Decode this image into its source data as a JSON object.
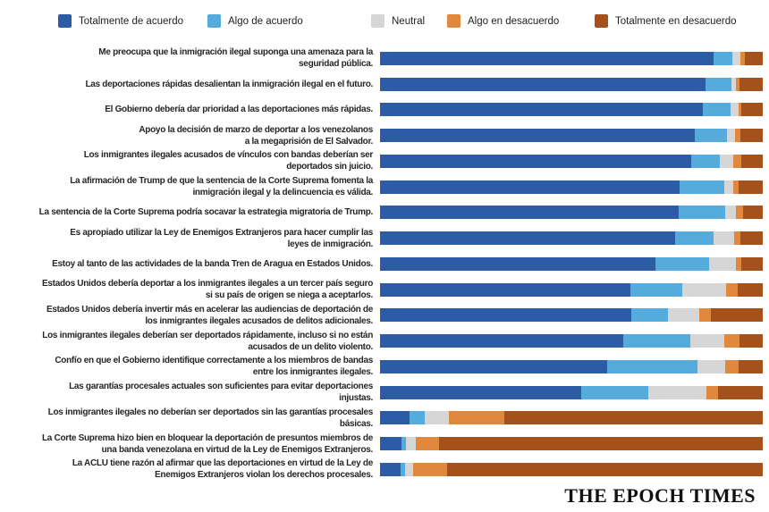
{
  "legend": {
    "items": [
      {
        "label": "Totalmente de acuerdo",
        "color": "#2d5ca6"
      },
      {
        "label": "Algo de acuerdo",
        "color": "#54abdc"
      },
      {
        "label": "Neutral",
        "color": "#d6d6d6"
      },
      {
        "label": "Algo en desacuerdo",
        "color": "#e0883d"
      },
      {
        "label": "Totalmente en desacuerdo",
        "color": "#a4511c"
      }
    ]
  },
  "chart_data": {
    "type": "bar",
    "orientation": "horizontal",
    "stacked": true,
    "unit": "percent",
    "xlim": [
      0,
      100
    ],
    "grid": false,
    "legend_position": "top",
    "categories": [
      "Me preocupa que la inmigración ilegal suponga una amenaza para la\nseguridad pública.",
      "Las deportaciones rápidas desalientan la inmigración ilegal en el futuro.",
      "El Gobierno debería dar prioridad a las deportaciones más rápidas.",
      "Apoyo la decisión de marzo de deportar a los venezolanos\na la megaprisión de El Salvador.",
      "Los inmigrantes ilegales acusados de vínculos con bandas deberían ser\ndeportados sin juicio.",
      "La afirmación de Trump de que la sentencia de la Corte Suprema fomenta la\ninmigración ilegal y la delincuencia es válida.",
      "La sentencia de la Corte Suprema podría socavar la estrategia migratoria de Trump.",
      "Es apropiado utilizar la Ley de Enemigos Extranjeros para hacer cumplir las\nleyes de inmigración.",
      "Estoy al tanto de las actividades de la banda Tren de Aragua en Estados Unidos.",
      "Estados Unidos debería deportar a los inmigrantes ilegales a un tercer país seguro\nsi su país de origen se niega a aceptarlos.",
      "Estados Unidos debería invertir más en acelerar las audiencias de deportación de\nlos inmigrantes ilegales acusados de delitos adicionales.",
      "Los inmigrantes ilegales deberían ser deportados rápidamente, incluso si no están\nacusados de un delito violento.",
      "Confío en que el Gobierno identifique correctamente a los miembros de bandas\nentre los inmigrantes ilegales.",
      "Las garantías procesales actuales son suficientes para evitar deportaciones\ninjustas.",
      "Los inmigrantes ilegales no deberían ser deportados sin las garantías procesales\nbásicas.",
      "La Corte Suprema hizo bien en bloquear la deportación de presuntos miembros de\nuna banda venezolana en virtud de la Ley de Enemigos Extranjeros.",
      "La ACLU tiene razón al afirmar que las deportaciones en virtud de la Ley de\nEnemigos Extranjeros violan los derechos procesales."
    ],
    "series": [
      {
        "name": "Totalmente de acuerdo",
        "color": "#2d5ca6",
        "values": [
          87.1,
          85.0,
          84.3,
          82.2,
          81.3,
          78.3,
          78.0,
          77.1,
          72.0,
          65.4,
          65.7,
          63.6,
          59.3,
          52.6,
          7.7,
          5.6,
          5.4
        ]
      },
      {
        "name": "Algo de acuerdo",
        "color": "#54abdc",
        "values": [
          4.9,
          6.8,
          7.2,
          8.4,
          7.5,
          11.7,
          12.1,
          10.0,
          14.0,
          13.6,
          9.6,
          17.5,
          23.6,
          17.5,
          4.0,
          1.2,
          1.2
        ]
      },
      {
        "name": "Neutral",
        "color": "#d6d6d6",
        "values": [
          2.1,
          1.2,
          2.1,
          2.1,
          3.5,
          2.3,
          2.8,
          5.4,
          7.0,
          11.4,
          8.2,
          8.9,
          7.2,
          15.2,
          6.3,
          2.6,
          2.1
        ]
      },
      {
        "name": "Algo en desacuerdo",
        "color": "#e0883d",
        "values": [
          1.2,
          0.9,
          0.9,
          1.4,
          2.1,
          1.4,
          1.9,
          1.6,
          1.4,
          3.0,
          3.0,
          4.0,
          3.5,
          3.0,
          14.5,
          6.1,
          8.9
        ]
      },
      {
        "name": "Totalmente en desacuerdo",
        "color": "#a4511c",
        "values": [
          4.7,
          6.1,
          5.5,
          5.9,
          5.6,
          6.3,
          5.2,
          5.9,
          5.6,
          6.6,
          13.5,
          6.0,
          6.4,
          11.7,
          67.5,
          84.5,
          82.4
        ]
      }
    ]
  },
  "footer": {
    "brand": "THE EPOCH TIMES"
  }
}
